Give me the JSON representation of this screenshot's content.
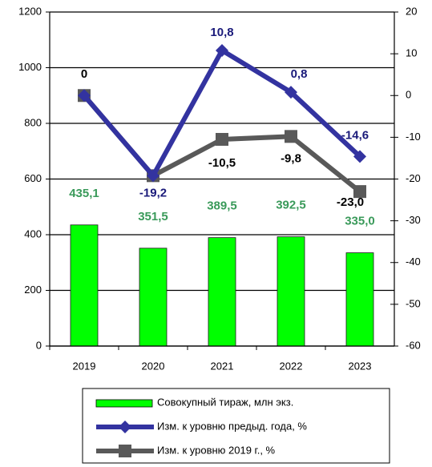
{
  "chart_data": {
    "type": "bar_line",
    "categories": [
      "2019",
      "2020",
      "2021",
      "2022",
      "2023"
    ],
    "series": [
      {
        "name": "Совокупный тираж, млн экз.",
        "type": "bar",
        "color": "#00ff00",
        "label_color": "#3a9a5a",
        "values": [
          435.1,
          351.5,
          389.5,
          392.5,
          335.0
        ],
        "value_labels": [
          "435,1",
          "351,5",
          "389,5",
          "392,5",
          "335,0"
        ]
      },
      {
        "name": "Изм. к уровню предыд. года, %",
        "type": "line",
        "axis": "y2",
        "color": "#3333a0",
        "marker": "diamond",
        "label_color": "#1a1a7a",
        "values": [
          0,
          -19.2,
          10.8,
          0.8,
          -14.6
        ],
        "value_labels": [
          null,
          "-19,2",
          "10,8",
          "0,8",
          "-14,6"
        ]
      },
      {
        "name": "Изм. к уровню 2019 г., %",
        "type": "line",
        "axis": "y2",
        "color": "#595959",
        "marker": "square",
        "label_color": "#000000",
        "values": [
          0,
          -19.2,
          -10.5,
          -9.8,
          -23.0
        ],
        "value_labels": [
          "0",
          null,
          "-10,5",
          "-9,8",
          "-23,0"
        ]
      }
    ],
    "ylim": [
      0,
      1200
    ],
    "yticks": [
      0,
      200,
      400,
      600,
      800,
      1000,
      1200
    ],
    "y2lim": [
      -60,
      20
    ],
    "y2ticks": [
      -60,
      -50,
      -40,
      -30,
      -20,
      -10,
      0,
      10,
      20
    ],
    "grid": true,
    "legend": "bottom"
  }
}
